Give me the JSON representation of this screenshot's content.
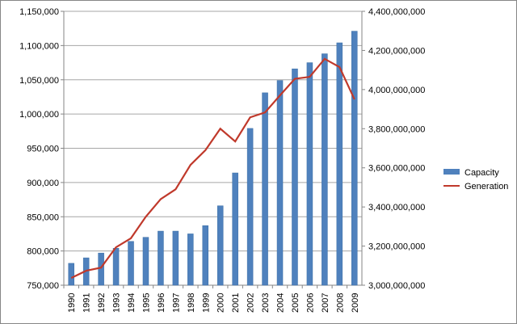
{
  "chart_data": {
    "type": "bar+line",
    "title": "",
    "categories": [
      "1990",
      "1991",
      "1992",
      "1993",
      "1994",
      "1995",
      "1996",
      "1997",
      "1998",
      "1999",
      "2000",
      "2001",
      "2002",
      "2003",
      "2004",
      "2005",
      "2006",
      "2007",
      "2008",
      "2009"
    ],
    "series": [
      {
        "name": "Capacity",
        "type": "bar",
        "axis": "left",
        "color": "#4f81bd",
        "values": [
          782000,
          790000,
          797000,
          804000,
          814000,
          820000,
          829000,
          829000,
          825000,
          837000,
          866000,
          914000,
          979000,
          1031000,
          1049000,
          1066000,
          1075000,
          1088000,
          1104000,
          1121000
        ]
      },
      {
        "name": "Generation",
        "type": "line",
        "axis": "right",
        "color": "#c0392b",
        "values": [
          3037000000,
          3074000000,
          3090000000,
          3194000000,
          3240000000,
          3350000000,
          3440000000,
          3490000000,
          3615000000,
          3690000000,
          3800000000,
          3735000000,
          3858000000,
          3883000000,
          3970000000,
          4055000000,
          4065000000,
          4157000000,
          4115000000,
          3950000000
        ]
      }
    ],
    "left_axis": {
      "min": 750000,
      "max": 1150000,
      "step": 50000,
      "tick_labels": [
        "750,000",
        "800,000",
        "850,000",
        "900,000",
        "950,000",
        "1,000,000",
        "1,050,000",
        "1,100,000",
        "1,150,000"
      ]
    },
    "right_axis": {
      "min": 3000000000,
      "max": 4400000000,
      "step": 200000000,
      "tick_labels": [
        "3,000,000,000",
        "3,200,000,000",
        "3,400,000,000",
        "3,600,000,000",
        "3,800,000,000",
        "4,000,000,000",
        "4,200,000,000",
        "4,400,000,000"
      ]
    },
    "grid": true,
    "legend": {
      "position": "right",
      "entries": [
        "Capacity",
        "Generation"
      ]
    }
  }
}
